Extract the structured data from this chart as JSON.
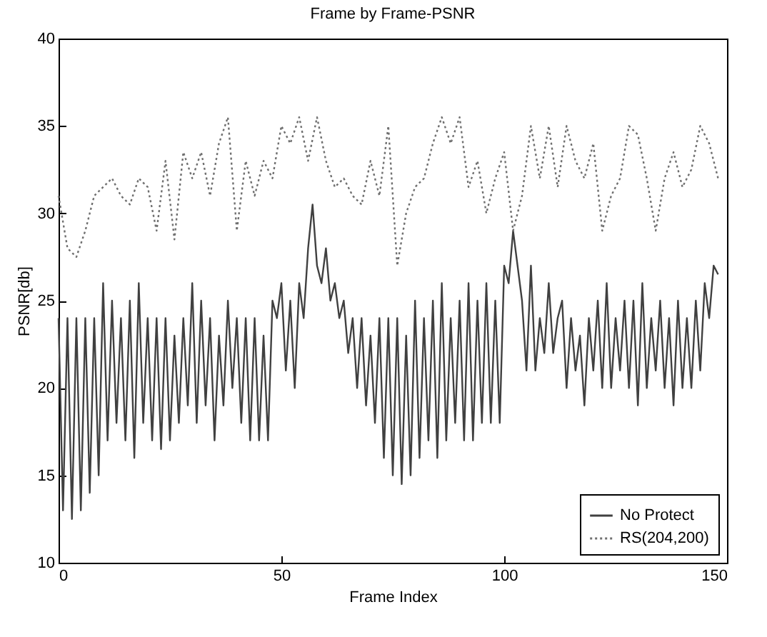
{
  "chart_data": {
    "type": "line",
    "title": "Frame by Frame-PSNR",
    "xlabel": "Frame Index",
    "ylabel": "PSNR[db]",
    "xlim": [
      0,
      150
    ],
    "xticks": [
      0,
      50,
      100,
      150
    ],
    "ylim": [
      10,
      40
    ],
    "yticks": [
      10,
      15,
      20,
      25,
      30,
      35,
      40
    ],
    "grid": false,
    "legend": "bottom right",
    "series": [
      {
        "name": "No Protect",
        "color": "#404040",
        "line_style": "solid",
        "x": [
          0,
          1,
          2,
          3,
          4,
          5,
          6,
          7,
          8,
          9,
          10,
          11,
          12,
          13,
          14,
          15,
          16,
          17,
          18,
          19,
          20,
          21,
          22,
          23,
          24,
          25,
          26,
          27,
          28,
          29,
          30,
          31,
          32,
          33,
          34,
          35,
          36,
          37,
          38,
          39,
          40,
          41,
          42,
          43,
          44,
          45,
          46,
          47,
          48,
          49,
          50,
          51,
          52,
          53,
          54,
          55,
          56,
          57,
          58,
          59,
          60,
          61,
          62,
          63,
          64,
          65,
          66,
          67,
          68,
          69,
          70,
          71,
          72,
          73,
          74,
          75,
          76,
          77,
          78,
          79,
          80,
          81,
          82,
          83,
          84,
          85,
          86,
          87,
          88,
          89,
          90,
          91,
          92,
          93,
          94,
          95,
          96,
          97,
          98,
          99,
          100,
          101,
          102,
          103,
          104,
          105,
          106,
          107,
          108,
          109,
          110,
          111,
          112,
          113,
          114,
          115,
          116,
          117,
          118,
          119,
          120,
          121,
          122,
          123,
          124,
          125,
          126,
          127,
          128,
          129,
          130,
          131,
          132,
          133,
          134,
          135,
          136,
          137,
          138,
          139,
          140,
          141,
          142,
          143,
          144,
          145,
          146,
          147,
          148
        ],
        "values": [
          24,
          13,
          24,
          12.5,
          24,
          13,
          24,
          14,
          24,
          15,
          26,
          17,
          25,
          18,
          24,
          17,
          25,
          16,
          26,
          18,
          24,
          17,
          24,
          16.5,
          24,
          17,
          23,
          18,
          24,
          19,
          26,
          18,
          25,
          19,
          24,
          17,
          23,
          19,
          25,
          20,
          24,
          18,
          24,
          17,
          24,
          17,
          23,
          17,
          25,
          24,
          26,
          21,
          25,
          20,
          26,
          24,
          28,
          30.5,
          27,
          26,
          28,
          25,
          26,
          24,
          25,
          22,
          24,
          20,
          24,
          19,
          23,
          18,
          24,
          16,
          24,
          15,
          24,
          14.5,
          23,
          15,
          25,
          16,
          24,
          17,
          25,
          16,
          26,
          17,
          24,
          18,
          25,
          17,
          26,
          17,
          25,
          18,
          26,
          18,
          25,
          18,
          27,
          26,
          29,
          27,
          25,
          21,
          27,
          21,
          24,
          22,
          26,
          22,
          24,
          25,
          20,
          24,
          21,
          23,
          19,
          24,
          21,
          25,
          20,
          26,
          20,
          24,
          21,
          25,
          20,
          25,
          19,
          26,
          20,
          24,
          21,
          25,
          20,
          24,
          19,
          25,
          20,
          24,
          20,
          25,
          21,
          26,
          24,
          27,
          26.5
        ]
      },
      {
        "name": "RS(204,200)",
        "color": "#707070",
        "line_style": "dotted",
        "x": [
          0,
          2,
          4,
          6,
          8,
          10,
          12,
          14,
          16,
          18,
          20,
          22,
          24,
          26,
          28,
          30,
          32,
          34,
          36,
          38,
          40,
          42,
          44,
          46,
          48,
          50,
          52,
          54,
          56,
          58,
          60,
          62,
          64,
          66,
          68,
          70,
          72,
          74,
          76,
          78,
          80,
          82,
          84,
          86,
          88,
          90,
          92,
          94,
          96,
          98,
          100,
          102,
          104,
          106,
          108,
          110,
          112,
          114,
          116,
          118,
          120,
          122,
          124,
          126,
          128,
          130,
          132,
          134,
          136,
          138,
          140,
          142,
          144,
          146,
          148
        ],
        "values": [
          31,
          28,
          27.5,
          29,
          31,
          31.5,
          32,
          31,
          30.5,
          32,
          31.5,
          29,
          33,
          28.5,
          33.5,
          32,
          33.5,
          31,
          34,
          35.5,
          29,
          33,
          31,
          33,
          32,
          35,
          34,
          35.5,
          33,
          35.5,
          33,
          31.5,
          32,
          31,
          30.5,
          33,
          31,
          35,
          27,
          30,
          31.5,
          32,
          34,
          35.5,
          34,
          35.5,
          31.5,
          33,
          30,
          32,
          33.5,
          29,
          31,
          35,
          32,
          35,
          31.5,
          35,
          33,
          32,
          34,
          29,
          31,
          32,
          35,
          34.5,
          32,
          29,
          32,
          33.5,
          31.5,
          32.5,
          35,
          34,
          32
        ]
      }
    ]
  }
}
